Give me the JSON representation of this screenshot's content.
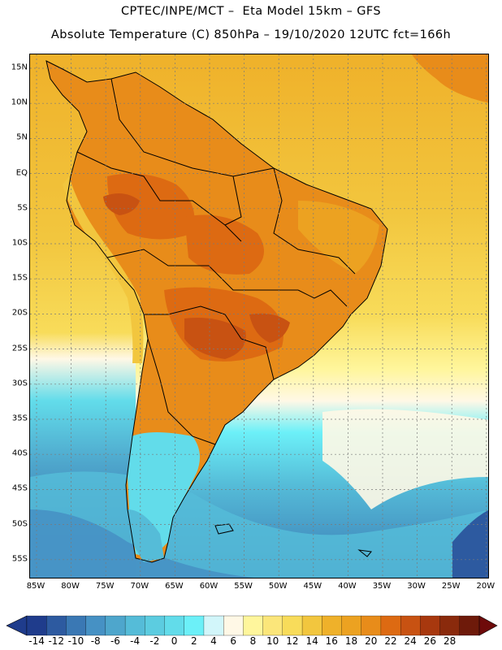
{
  "header": {
    "title_line1": "CPTEC/INPE/MCT –  Eta Model 15km – GFS",
    "title_line2": "Absolute Temperature (C) 850hPa – 19/10/2020 12UTC fct=166h"
  },
  "axes": {
    "lat_labels": [
      "15N",
      "10N",
      "5N",
      "EQ",
      "5S",
      "10S",
      "15S",
      "20S",
      "25S",
      "30S",
      "35S",
      "40S",
      "45S",
      "50S",
      "55S"
    ],
    "lon_labels": [
      "85W",
      "80W",
      "75W",
      "70W",
      "65W",
      "60W",
      "55W",
      "50W",
      "45W",
      "40W",
      "35W",
      "30W",
      "25W",
      "20W"
    ]
  },
  "colorbar": {
    "labels": [
      "-14",
      "-12",
      "-10",
      "-8",
      "-6",
      "-4",
      "-2",
      "0",
      "2",
      "4",
      "6",
      "8",
      "10",
      "12",
      "14",
      "16",
      "18",
      "20",
      "22",
      "24",
      "26",
      "28"
    ],
    "colors": [
      "#1f3c8c",
      "#2d5aa0",
      "#3a78b4",
      "#4691c4",
      "#4ea6cc",
      "#55bcd8",
      "#5ccce0",
      "#62dcea",
      "#6cf0f8",
      "#d2f6fa",
      "#fff8e6",
      "#fff69c",
      "#fbe67a",
      "#f8dc5a",
      "#f2c63e",
      "#efb12a",
      "#eca221",
      "#e88c1a",
      "#dd6a12",
      "#c85212",
      "#a8380e",
      "#8a2a0c",
      "#6e1a0a"
    ]
  },
  "map": {
    "icon": "south-america-temperature-field",
    "ocean_colors": {
      "warm": "#efb12a",
      "mid": "#f8dc5a",
      "cool": "#62dcea",
      "cold": "#4691c4"
    },
    "land_colors": {
      "hot": "#c85212",
      "warm": "#dd6a12",
      "mild": "#e88c1a"
    }
  }
}
